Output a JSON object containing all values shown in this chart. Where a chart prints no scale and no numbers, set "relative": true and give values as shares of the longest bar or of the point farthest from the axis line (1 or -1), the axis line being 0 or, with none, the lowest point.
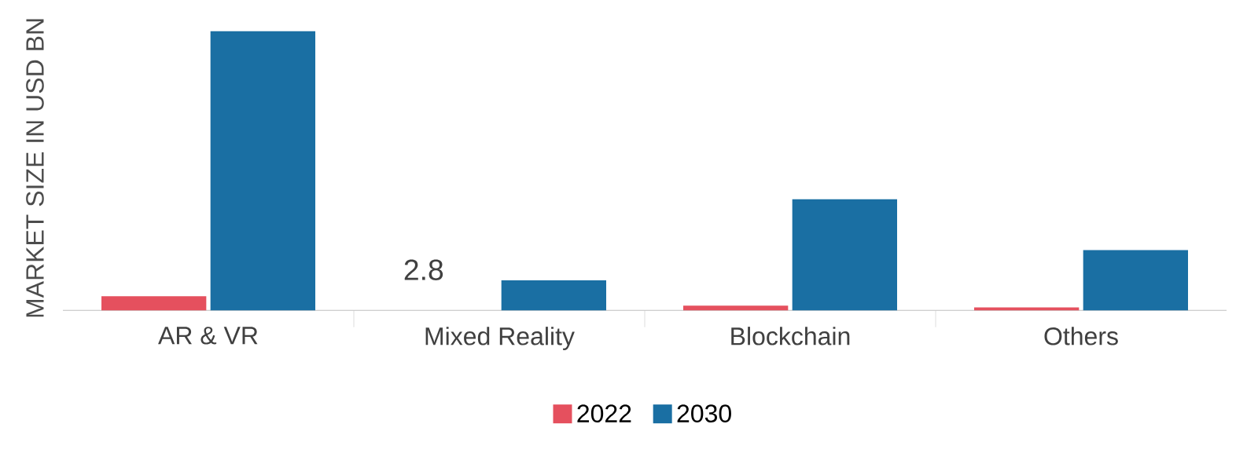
{
  "chart_data": {
    "type": "bar",
    "relative": true,
    "ylabel": "MARKET SIZE IN USD BN",
    "categories": [
      "AR & VR",
      "Mixed Reality",
      "Blockchain",
      "Others"
    ],
    "series": [
      {
        "name": "2022",
        "color": "#e5505e",
        "values": [
          0.051,
          null,
          0.017,
          0.011
        ]
      },
      {
        "name": "2030",
        "color": "#1a6fa3",
        "values": [
          1,
          0.108,
          0.398,
          0.216
        ]
      }
    ],
    "annotations": [
      "2.8"
    ],
    "legend": "bottom"
  }
}
